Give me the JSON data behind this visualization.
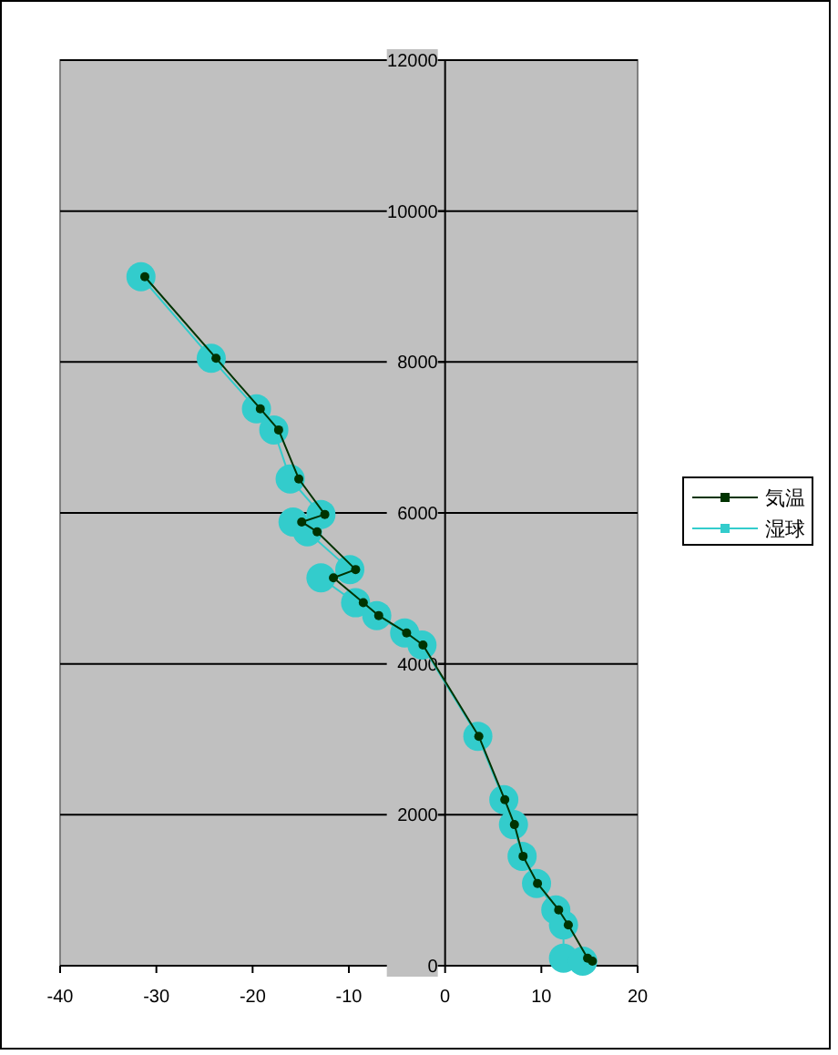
{
  "chart_data": {
    "type": "line",
    "xlim": [
      -40,
      20
    ],
    "ylim": [
      0,
      12000
    ],
    "xticks": [
      -40,
      -30,
      -20,
      -10,
      0,
      10,
      20
    ],
    "yticks": [
      0,
      2000,
      4000,
      6000,
      8000,
      10000,
      12000
    ],
    "grid": "y",
    "legend": "right",
    "marker": "circle",
    "line_style": "solid",
    "series": [
      {
        "name": "気温",
        "color": "#003300",
        "x": [
          -31.2,
          -23.8,
          -19.2,
          -17.3,
          -15.2,
          -12.5,
          -14.9,
          -13.3,
          -9.3,
          -11.6,
          -8.5,
          -6.9,
          -4.0,
          -2.3,
          3.5,
          6.2,
          7.2,
          8.1,
          9.6,
          11.8,
          12.8,
          14.8,
          15.3
        ],
        "values": [
          9130,
          8050,
          7380,
          7100,
          6450,
          5980,
          5880,
          5750,
          5250,
          5140,
          4810,
          4640,
          4410,
          4250,
          3040,
          2200,
          1870,
          1450,
          1090,
          740,
          540,
          100,
          60
        ]
      },
      {
        "name": "湿球",
        "color": "#33cccc",
        "x": [
          -31.6,
          -24.3,
          -19.6,
          -17.8,
          -16.1,
          -12.9,
          -15.8,
          -14.3,
          -9.9,
          -12.9,
          -9.3,
          -7.1,
          -4.2,
          -2.4,
          3.4,
          6.1,
          7.1,
          8.0,
          9.5,
          11.5,
          12.3,
          12.3,
          14.3
        ],
        "values": [
          9130,
          8050,
          7380,
          7100,
          6450,
          5980,
          5880,
          5750,
          5250,
          5140,
          4810,
          4640,
          4410,
          4250,
          3040,
          2200,
          1870,
          1450,
          1090,
          740,
          540,
          100,
          60
        ]
      }
    ]
  }
}
